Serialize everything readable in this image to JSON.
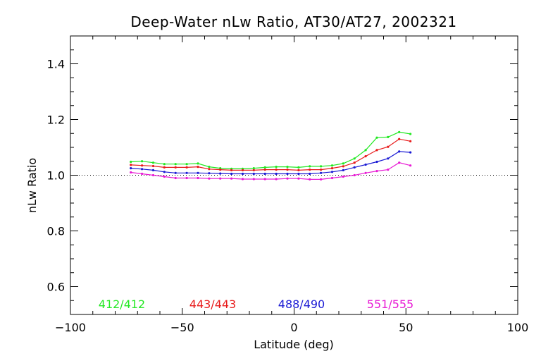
{
  "chart_data": {
    "type": "line",
    "title": "Deep-Water nLw Ratio, AT30/AT27, 2002321",
    "xlabel": "Latitude (deg)",
    "ylabel": "nLw Ratio",
    "xlim": [
      -100,
      100
    ],
    "ylim": [
      0.5,
      1.5
    ],
    "xticks": [
      -100,
      -50,
      0,
      50,
      100
    ],
    "xtick_labels": [
      "−100",
      "−50",
      "0",
      "50",
      "100"
    ],
    "yticks": [
      0.6,
      0.8,
      1.0,
      1.2,
      1.4
    ],
    "ytick_labels": [
      "0.6",
      "0.8",
      "1.0",
      "1.2",
      "1.4"
    ],
    "reference_line": 1.0,
    "reference_style": "dotted",
    "grid": false,
    "legend_position": "bottom-inside",
    "x": [
      -73,
      -68,
      -63,
      -58,
      -53,
      -48,
      -43,
      -38,
      -33,
      -28,
      -23,
      -18,
      -13,
      -8,
      -3,
      2,
      7,
      12,
      17,
      22,
      27,
      32,
      37,
      42,
      47,
      52
    ],
    "series": [
      {
        "name": "412/412",
        "color": "#22e822",
        "values": [
          1.048,
          1.05,
          1.045,
          1.04,
          1.04,
          1.04,
          1.042,
          1.03,
          1.025,
          1.023,
          1.023,
          1.025,
          1.028,
          1.03,
          1.03,
          1.028,
          1.032,
          1.032,
          1.035,
          1.042,
          1.06,
          1.09,
          1.135,
          1.137,
          1.155,
          1.148
        ]
      },
      {
        "name": "443/443",
        "color": "#e81a1a",
        "values": [
          1.037,
          1.035,
          1.033,
          1.028,
          1.028,
          1.028,
          1.03,
          1.022,
          1.02,
          1.018,
          1.018,
          1.018,
          1.02,
          1.02,
          1.02,
          1.018,
          1.02,
          1.02,
          1.025,
          1.032,
          1.045,
          1.068,
          1.09,
          1.102,
          1.13,
          1.122
        ]
      },
      {
        "name": "488/490",
        "color": "#1a1ad4",
        "values": [
          1.025,
          1.022,
          1.018,
          1.012,
          1.008,
          1.008,
          1.008,
          1.007,
          1.006,
          1.005,
          1.005,
          1.005,
          1.005,
          1.005,
          1.005,
          1.005,
          1.005,
          1.008,
          1.012,
          1.018,
          1.028,
          1.038,
          1.048,
          1.06,
          1.085,
          1.082
        ]
      },
      {
        "name": "551/555",
        "color": "#e81ad4",
        "values": [
          1.01,
          1.005,
          1.0,
          0.995,
          0.99,
          0.99,
          0.99,
          0.988,
          0.988,
          0.988,
          0.986,
          0.986,
          0.986,
          0.986,
          0.988,
          0.988,
          0.985,
          0.985,
          0.99,
          0.995,
          1.0,
          1.008,
          1.015,
          1.02,
          1.045,
          1.035
        ]
      }
    ]
  }
}
